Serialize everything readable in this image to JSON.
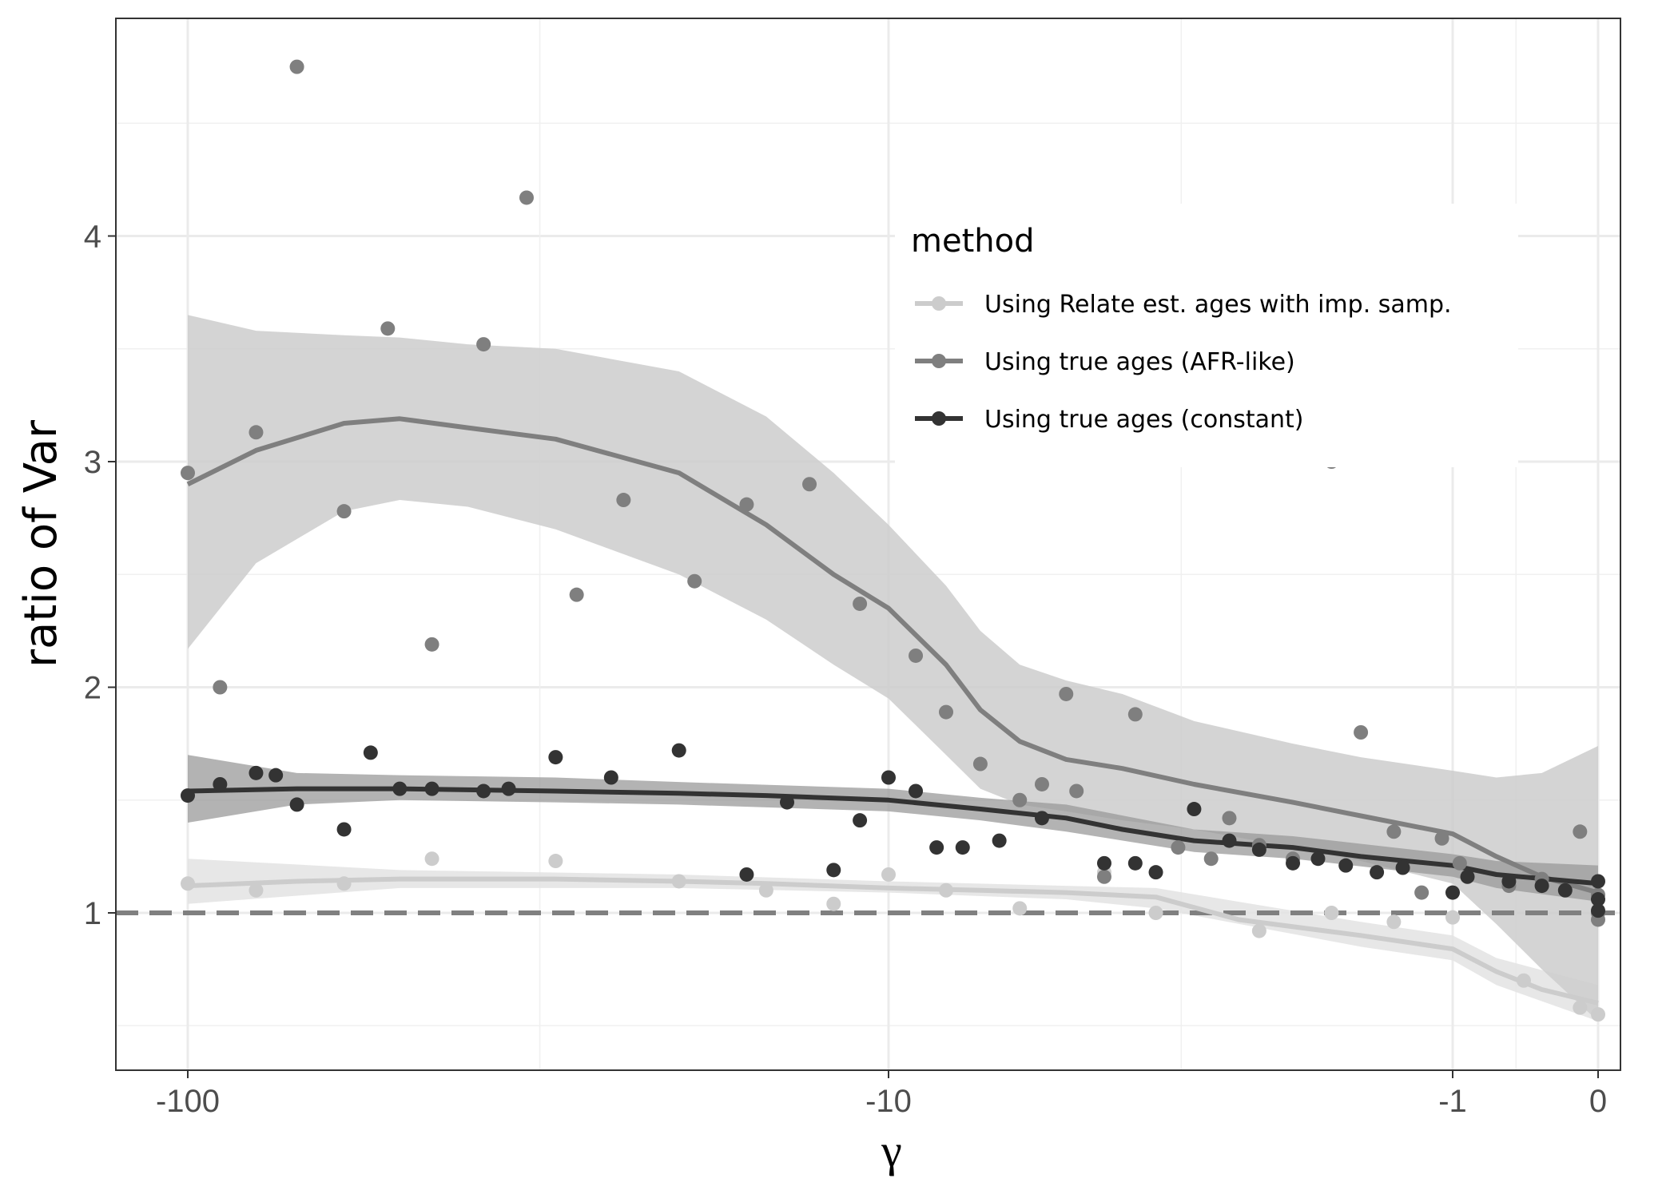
{
  "chart_data": {
    "type": "scatter",
    "xlabel": "γ",
    "ylabel": "ratio of Var",
    "x_scale": "pseudo-log (signed)",
    "xlim": [
      -150,
      0.05
    ],
    "ylim": [
      0.35,
      4.9
    ],
    "x_ticks": [
      {
        "value": -100,
        "label": "-100"
      },
      {
        "value": -10,
        "label": "-10"
      },
      {
        "value": -1,
        "label": "-1"
      },
      {
        "value": 0,
        "label": "0"
      }
    ],
    "y_ticks": [
      {
        "value": 1,
        "label": "1"
      },
      {
        "value": 2,
        "label": "2"
      },
      {
        "value": 3,
        "label": "3"
      },
      {
        "value": 4,
        "label": "4"
      }
    ],
    "reference_line": {
      "y": 1,
      "style": "dashed",
      "color": "#808080"
    },
    "grid": true,
    "legend": {
      "title": "method",
      "placement": "top-right inside",
      "entries": [
        "Using Relate est. ages with imp. samp.",
        "Using true ages (AFR-like)",
        "Using true ages (constant)"
      ]
    },
    "series": [
      {
        "name": "Using Relate est. ages with imp. samp.",
        "color": "#cccccc",
        "ribbon_color": "#e3e3e3",
        "points": [
          [
            -100,
            1.13
          ],
          [
            -80,
            1.1
          ],
          [
            -60,
            1.13
          ],
          [
            -45,
            1.24
          ],
          [
            -30,
            1.23
          ],
          [
            -20,
            1.14
          ],
          [
            -15,
            1.1
          ],
          [
            -12,
            1.04
          ],
          [
            -10,
            1.17
          ],
          [
            -8,
            1.1
          ],
          [
            -6,
            1.02
          ],
          [
            -4.3,
            1.18
          ],
          [
            -3.5,
            1.0
          ],
          [
            -2.3,
            0.92
          ],
          [
            -1.7,
            1.0
          ],
          [
            -1.3,
            0.96
          ],
          [
            -1.0,
            0.98
          ],
          [
            -0.3,
            0.7
          ],
          [
            -0.05,
            0.58
          ],
          [
            0,
            0.55
          ]
        ],
        "smooth": [
          [
            -100,
            1.12
          ],
          [
            -70,
            1.14
          ],
          [
            -50,
            1.15
          ],
          [
            -30,
            1.15
          ],
          [
            -20,
            1.14
          ],
          [
            -15,
            1.13
          ],
          [
            -10,
            1.11
          ],
          [
            -7,
            1.1
          ],
          [
            -5,
            1.09
          ],
          [
            -3.5,
            1.07
          ],
          [
            -2.5,
            0.97
          ],
          [
            -1.5,
            0.9
          ],
          [
            -1,
            0.84
          ],
          [
            -0.5,
            0.74
          ],
          [
            -0.2,
            0.66
          ],
          [
            0,
            0.6
          ]
        ],
        "band": [
          [
            -100,
            1.04,
            1.24
          ],
          [
            -50,
            1.11,
            1.19
          ],
          [
            -20,
            1.11,
            1.17
          ],
          [
            -10,
            1.09,
            1.14
          ],
          [
            -5,
            1.06,
            1.12
          ],
          [
            -3.5,
            1.02,
            1.11
          ],
          [
            -1.5,
            0.85,
            0.96
          ],
          [
            -1,
            0.79,
            0.9
          ],
          [
            -0.5,
            0.68,
            0.8
          ],
          [
            0,
            0.52,
            0.68
          ]
        ]
      },
      {
        "name": "Using true ages (AFR-like)",
        "color": "#7f7f7f",
        "ribbon_color": "#cccccc",
        "points": [
          [
            -100,
            2.95
          ],
          [
            -90,
            2.0
          ],
          [
            -80,
            3.13
          ],
          [
            -70,
            4.75
          ],
          [
            -60,
            2.78
          ],
          [
            -52,
            3.59
          ],
          [
            -45,
            2.19
          ],
          [
            -38,
            3.52
          ],
          [
            -33,
            4.17
          ],
          [
            -28,
            2.41
          ],
          [
            -24,
            2.83
          ],
          [
            -19,
            2.47
          ],
          [
            -16,
            2.81
          ],
          [
            -13,
            2.9
          ],
          [
            -11,
            2.37
          ],
          [
            -9,
            2.14
          ],
          [
            -8,
            1.89
          ],
          [
            -7,
            1.66
          ],
          [
            -6,
            1.5
          ],
          [
            -5.5,
            1.57
          ],
          [
            -5,
            1.97
          ],
          [
            -4.8,
            1.54
          ],
          [
            -4.3,
            1.16
          ],
          [
            -3.8,
            1.88
          ],
          [
            -3.2,
            1.29
          ],
          [
            -2.8,
            1.24
          ],
          [
            -2.6,
            1.42
          ],
          [
            -2.3,
            1.3
          ],
          [
            -2.0,
            1.24
          ],
          [
            -1.7,
            3.0
          ],
          [
            -1.5,
            1.8
          ],
          [
            -1.3,
            1.36
          ],
          [
            -1.15,
            1.09
          ],
          [
            -1.05,
            1.33
          ],
          [
            -0.9,
            1.22
          ],
          [
            -0.4,
            1.12
          ],
          [
            -0.2,
            1.15
          ],
          [
            -0.05,
            1.36
          ],
          [
            0,
            1.08
          ],
          [
            0,
            1.0
          ],
          [
            0,
            0.97
          ]
        ],
        "smooth": [
          [
            -100,
            2.9
          ],
          [
            -80,
            3.05
          ],
          [
            -60,
            3.17
          ],
          [
            -50,
            3.19
          ],
          [
            -40,
            3.15
          ],
          [
            -30,
            3.1
          ],
          [
            -20,
            2.95
          ],
          [
            -15,
            2.72
          ],
          [
            -12,
            2.5
          ],
          [
            -10,
            2.35
          ],
          [
            -8,
            2.1
          ],
          [
            -7,
            1.9
          ],
          [
            -6,
            1.76
          ],
          [
            -5,
            1.68
          ],
          [
            -4,
            1.64
          ],
          [
            -3,
            1.57
          ],
          [
            -2,
            1.49
          ],
          [
            -1.5,
            1.43
          ],
          [
            -1,
            1.35
          ],
          [
            -0.5,
            1.25
          ],
          [
            -0.2,
            1.16
          ],
          [
            0,
            1.09
          ]
        ],
        "band": [
          [
            -100,
            2.17,
            3.65
          ],
          [
            -80,
            2.55,
            3.58
          ],
          [
            -60,
            2.78,
            3.56
          ],
          [
            -50,
            2.83,
            3.55
          ],
          [
            -40,
            2.8,
            3.52
          ],
          [
            -30,
            2.7,
            3.5
          ],
          [
            -20,
            2.5,
            3.4
          ],
          [
            -15,
            2.3,
            3.2
          ],
          [
            -12,
            2.1,
            2.95
          ],
          [
            -10,
            1.95,
            2.72
          ],
          [
            -8,
            1.7,
            2.45
          ],
          [
            -7,
            1.55,
            2.25
          ],
          [
            -6,
            1.48,
            2.1
          ],
          [
            -5,
            1.45,
            2.03
          ],
          [
            -4,
            1.41,
            1.97
          ],
          [
            -3,
            1.37,
            1.85
          ],
          [
            -2,
            1.29,
            1.75
          ],
          [
            -1.5,
            1.23,
            1.69
          ],
          [
            -1,
            1.13,
            1.63
          ],
          [
            -0.5,
            0.95,
            1.6
          ],
          [
            -0.2,
            0.75,
            1.62
          ],
          [
            0,
            0.52,
            1.74
          ]
        ]
      },
      {
        "name": "Using true ages (constant)",
        "color": "#333333",
        "ribbon_color": "#999999",
        "points": [
          [
            -100,
            1.52
          ],
          [
            -90,
            1.57
          ],
          [
            -80,
            1.62
          ],
          [
            -75,
            1.61
          ],
          [
            -70,
            1.48
          ],
          [
            -60,
            1.37
          ],
          [
            -55,
            1.71
          ],
          [
            -50,
            1.55
          ],
          [
            -45,
            1.55
          ],
          [
            -38,
            1.54
          ],
          [
            -35,
            1.55
          ],
          [
            -30,
            1.69
          ],
          [
            -25,
            1.6
          ],
          [
            -20,
            1.72
          ],
          [
            -16,
            1.17
          ],
          [
            -14,
            1.49
          ],
          [
            -12,
            1.19
          ],
          [
            -11,
            1.41
          ],
          [
            -10,
            1.6
          ],
          [
            -9,
            1.54
          ],
          [
            -8.3,
            1.29
          ],
          [
            -7.5,
            1.29
          ],
          [
            -6.5,
            1.32
          ],
          [
            -5.5,
            1.42
          ],
          [
            -4.3,
            1.22
          ],
          [
            -3.8,
            1.22
          ],
          [
            -3.5,
            1.18
          ],
          [
            -3.0,
            1.46
          ],
          [
            -2.6,
            1.32
          ],
          [
            -2.3,
            1.28
          ],
          [
            -2.0,
            1.22
          ],
          [
            -1.8,
            1.24
          ],
          [
            -1.6,
            1.21
          ],
          [
            -1.4,
            1.18
          ],
          [
            -1.25,
            1.2
          ],
          [
            -1.0,
            1.09
          ],
          [
            -0.8,
            1.16
          ],
          [
            -0.4,
            1.14
          ],
          [
            -0.2,
            1.12
          ],
          [
            -0.1,
            1.1
          ],
          [
            0,
            1.14
          ],
          [
            0,
            1.06
          ],
          [
            0,
            1.01
          ]
        ],
        "smooth": [
          [
            -100,
            1.54
          ],
          [
            -70,
            1.55
          ],
          [
            -50,
            1.55
          ],
          [
            -30,
            1.54
          ],
          [
            -20,
            1.53
          ],
          [
            -15,
            1.52
          ],
          [
            -10,
            1.5
          ],
          [
            -7,
            1.46
          ],
          [
            -5,
            1.42
          ],
          [
            -4,
            1.37
          ],
          [
            -3,
            1.32
          ],
          [
            -2,
            1.29
          ],
          [
            -1.5,
            1.25
          ],
          [
            -1,
            1.21
          ],
          [
            -0.5,
            1.17
          ],
          [
            0,
            1.13
          ]
        ],
        "band": [
          [
            -100,
            1.4,
            1.7
          ],
          [
            -70,
            1.48,
            1.62
          ],
          [
            -50,
            1.5,
            1.61
          ],
          [
            -30,
            1.49,
            1.6
          ],
          [
            -20,
            1.48,
            1.58
          ],
          [
            -10,
            1.45,
            1.55
          ],
          [
            -7,
            1.41,
            1.51
          ],
          [
            -5,
            1.36,
            1.48
          ],
          [
            -3,
            1.27,
            1.37
          ],
          [
            -2,
            1.24,
            1.34
          ],
          [
            -1,
            1.16,
            1.26
          ],
          [
            -0.5,
            1.11,
            1.23
          ],
          [
            0,
            1.05,
            1.21
          ]
        ]
      }
    ]
  }
}
